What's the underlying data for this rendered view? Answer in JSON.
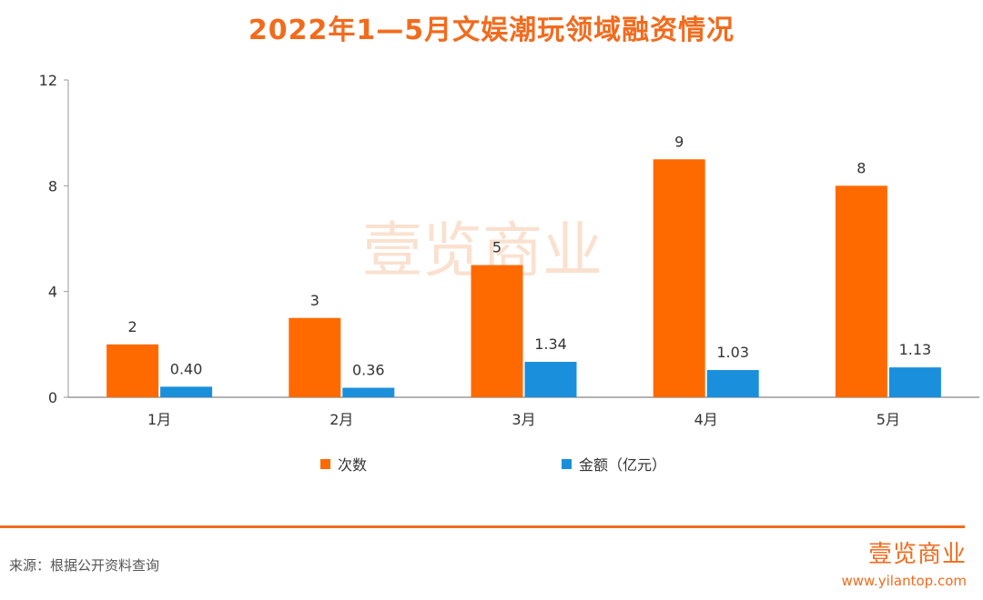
{
  "title": "2022年1—5月文娱潮玩领域融资情况",
  "watermark": "壹览商业",
  "chart_data": {
    "type": "bar",
    "title": "2022年1—5月文娱潮玩领域融资情况",
    "categories": [
      "1月",
      "2月",
      "3月",
      "4月",
      "5月"
    ],
    "series": [
      {
        "name": "次数",
        "values": [
          2,
          3,
          5,
          9,
          8
        ],
        "labels": [
          "2",
          "3",
          "5",
          "9",
          "8"
        ],
        "color": "#ff6a00"
      },
      {
        "name": "金额（亿元）",
        "values": [
          0.4,
          0.36,
          1.34,
          1.03,
          1.13
        ],
        "labels": [
          "0.40",
          "0.36",
          "1.34",
          "1.03",
          "1.13"
        ],
        "color": "#1a8fdc"
      }
    ],
    "ylim": [
      0,
      12
    ],
    "yticks": [
      0,
      4,
      8,
      12
    ],
    "ytick_labels": [
      "0",
      "4",
      "8",
      "12"
    ],
    "xlabel": "",
    "ylabel": "",
    "legend": "bottom-center",
    "grid": false
  },
  "footer": {
    "source": "来源：根据公开资料查询",
    "logo_name": "壹览商业",
    "logo_url": "www.yilantop.com",
    "accent_color": "#f26b1d"
  }
}
